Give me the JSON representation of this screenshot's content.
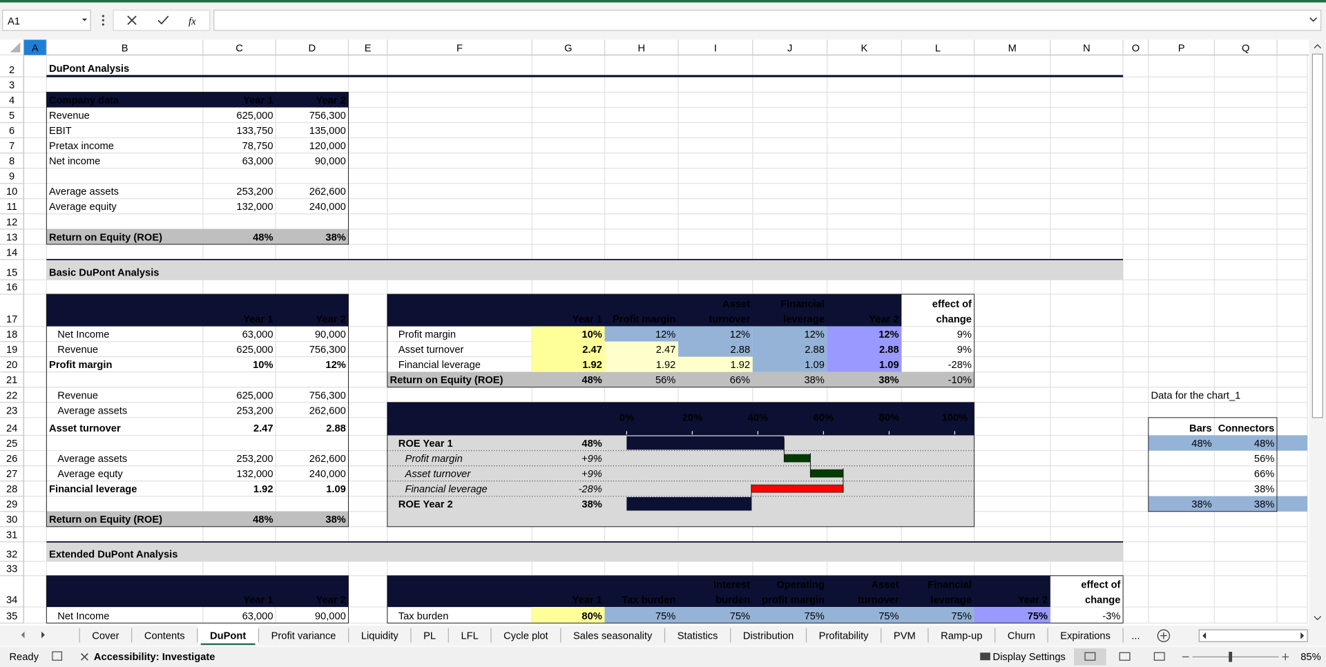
{
  "formula_bar": {
    "name_box": "A1",
    "fx": "fx"
  },
  "sheet": {
    "columns": [
      "A",
      "B",
      "C",
      "D",
      "E",
      "F",
      "G",
      "H",
      "I",
      "J",
      "K",
      "L",
      "M",
      "N",
      "O",
      "P",
      "Q"
    ],
    "rows": [
      {
        "row": 2,
        "cells": {
          "B": "DuPont Analysis"
        }
      },
      {
        "row": 3,
        "cells": {}
      },
      {
        "row": 4,
        "cells": {
          "B": "Company data",
          "C": "Year 1",
          "D": "Year 2"
        }
      },
      {
        "row": 5,
        "cells": {
          "B": "Revenue",
          "C": "625,000",
          "D": "756,300"
        }
      },
      {
        "row": 6,
        "cells": {
          "B": "EBIT",
          "C": "133,750",
          "D": "135,000"
        }
      },
      {
        "row": 7,
        "cells": {
          "B": "Pretax income",
          "C": "78,750",
          "D": "120,000"
        }
      },
      {
        "row": 8,
        "cells": {
          "B": "Net income",
          "C": "63,000",
          "D": "90,000"
        }
      },
      {
        "row": 9,
        "cells": {}
      },
      {
        "row": 10,
        "cells": {
          "B": "Average assets",
          "C": "253,200",
          "D": "262,600"
        }
      },
      {
        "row": 11,
        "cells": {
          "B": "Average equity",
          "C": "132,000",
          "D": "240,000"
        }
      },
      {
        "row": 12,
        "cells": {}
      },
      {
        "row": 13,
        "cells": {
          "B": "Return on Equity (ROE)",
          "C": "48%",
          "D": "38%"
        }
      },
      {
        "row": 14,
        "cells": {}
      },
      {
        "row": 15,
        "cells": {
          "B": "Basic DuPont Analysis"
        }
      },
      {
        "row": 16,
        "cells": {}
      },
      {
        "row": 17,
        "cells": {
          "C": "Year 1",
          "D": "Year 2",
          "G": "Year 1",
          "H": "Profit margin",
          "I": "Asset\nturnover",
          "J": "Financial\nleverage",
          "K": "Year 2",
          "L": "effect of\nchange"
        }
      },
      {
        "row": 18,
        "cells": {
          "B": "Net Income",
          "C": "63,000",
          "D": "90,000",
          "F": "Profit margin",
          "G": "10%",
          "H": "12%",
          "I": "12%",
          "J": "12%",
          "K": "12%",
          "L": "9%"
        }
      },
      {
        "row": 19,
        "cells": {
          "B": "Revenue",
          "C": "625,000",
          "D": "756,300",
          "F": "Asset turnover",
          "G": "2.47",
          "H": "2.47",
          "I": "2.88",
          "J": "2.88",
          "K": "2.88",
          "L": "9%"
        }
      },
      {
        "row": 20,
        "cells": {
          "B": "Profit margin",
          "C": "10%",
          "D": "12%",
          "F": "Financial leverage",
          "G": "1.92",
          "H": "1.92",
          "I": "1.92",
          "J": "1.09",
          "K": "1.09",
          "L": "-28%"
        }
      },
      {
        "row": 21,
        "cells": {
          "F": "Return on Equity (ROE)",
          "G": "48%",
          "H": "56%",
          "I": "66%",
          "J": "38%",
          "K": "38%",
          "L": "-10%"
        }
      },
      {
        "row": 22,
        "cells": {
          "B": "Revenue",
          "C": "625,000",
          "D": "756,300",
          "P": "Data for the chart_1"
        }
      },
      {
        "row": 23,
        "cells": {
          "B": "Average assets",
          "C": "253,200",
          "D": "262,600"
        }
      },
      {
        "row": 24,
        "cells": {
          "B": "Asset turnover",
          "C": "2.47",
          "D": "2.88",
          "P": "Bars",
          "Q": "Connectors"
        }
      },
      {
        "row": 25,
        "cells": {
          "F": "ROE Year 1",
          "G": "48%",
          "P": "48%",
          "Q": "48%"
        }
      },
      {
        "row": 26,
        "cells": {
          "B": "Average assets",
          "C": "253,200",
          "D": "262,600",
          "F": "Profit margin",
          "G": "+9%",
          "Q": "56%"
        }
      },
      {
        "row": 27,
        "cells": {
          "B": "Average equty",
          "C": "132,000",
          "D": "240,000",
          "F": "Asset turnover",
          "G": "+9%",
          "Q": "66%"
        }
      },
      {
        "row": 28,
        "cells": {
          "B": "Financial leverage",
          "C": "1.92",
          "D": "1.09",
          "F": "Financial leverage",
          "G": "-28%",
          "Q": "38%"
        }
      },
      {
        "row": 29,
        "cells": {
          "F": "ROE Year 2",
          "G": "38%",
          "P": "38%",
          "Q": "38%"
        }
      },
      {
        "row": 30,
        "cells": {
          "B": "Return on Equity (ROE)",
          "C": "48%",
          "D": "38%"
        }
      },
      {
        "row": 31,
        "cells": {}
      },
      {
        "row": 32,
        "cells": {
          "B": "Extended DuPont Analysis"
        }
      },
      {
        "row": 33,
        "cells": {}
      },
      {
        "row": 34,
        "cells": {
          "C": "Year 1",
          "D": "Year 2",
          "G": "Year 1",
          "H": "Tax burden",
          "I": "Interest\nburden",
          "J": "Operating\nprofit margin",
          "K": "Asset\nturnover",
          "L": "Financial\nleverage",
          "M": "Year 2",
          "N": "effect of\nchange"
        }
      },
      {
        "row": 35,
        "cells": {
          "B": "Net Income",
          "C": "63,000",
          "D": "90,000",
          "F": "Tax burden",
          "G": "80%",
          "H": "75%",
          "I": "75%",
          "J": "75%",
          "K": "75%",
          "L": "75%",
          "M": "75%",
          "N": "-3%"
        }
      }
    ]
  },
  "chart": {
    "xlim": [
      0,
      100
    ],
    "xticks": [
      {
        "value": 0,
        "label": "0%"
      },
      {
        "value": 20,
        "label": "20%"
      },
      {
        "value": 40,
        "label": "40%"
      },
      {
        "value": 60,
        "label": "60%"
      },
      {
        "value": 80,
        "label": "80%"
      },
      {
        "value": 100,
        "label": "100%"
      }
    ],
    "levels": [
      48,
      56,
      66,
      38
    ],
    "colors": {
      "total": "#0c1033",
      "increase": "#003b00",
      "decrease": "#ff0000"
    }
  },
  "tabs": {
    "items": [
      "Cover",
      "Contents",
      "DuPont",
      "Profit variance",
      "Liquidity",
      "PL",
      "LFL",
      "Cycle plot",
      "Sales seasonality",
      "Statistics",
      "Distribution",
      "Profitability",
      "PVM",
      "Ramp-up",
      "Churn",
      "Expirations"
    ],
    "active_index": 2,
    "more": "..."
  },
  "status": {
    "ready": "Ready",
    "accessibility": "Accessibility: Investigate",
    "display": "Display Settings",
    "zoom": "85%"
  }
}
